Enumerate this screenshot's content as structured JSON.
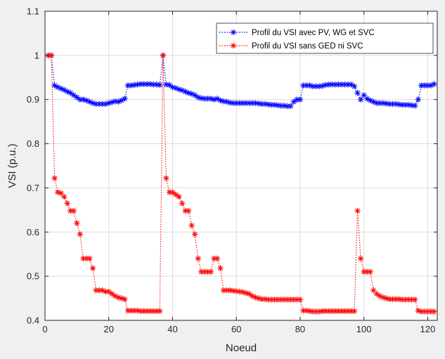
{
  "chart_data": {
    "type": "line",
    "xlabel": "Noeud",
    "ylabel": "VSI (p.u.)",
    "xlim": [
      0,
      123
    ],
    "ylim": [
      0.4,
      1.1
    ],
    "xticks": [
      0,
      20,
      40,
      60,
      80,
      100,
      120
    ],
    "yticks": [
      0.4,
      0.5,
      0.6,
      0.7,
      0.8,
      0.9,
      1,
      1.1
    ],
    "grid": true,
    "legend_position": "top-right",
    "series": [
      {
        "name": "Profil du VSI avec PV, WG et SVC",
        "color": "#0000ff",
        "linestyle": "dotted",
        "marker": "asterisk",
        "x": [
          1,
          2,
          3,
          4,
          5,
          6,
          7,
          8,
          9,
          10,
          11,
          12,
          13,
          14,
          15,
          16,
          17,
          18,
          19,
          20,
          21,
          22,
          23,
          24,
          25,
          26,
          27,
          28,
          29,
          30,
          31,
          32,
          33,
          34,
          35,
          36,
          37,
          38,
          39,
          40,
          41,
          42,
          43,
          44,
          45,
          46,
          47,
          48,
          49,
          50,
          51,
          52,
          53,
          54,
          55,
          56,
          57,
          58,
          59,
          60,
          61,
          62,
          63,
          64,
          65,
          66,
          67,
          68,
          69,
          70,
          71,
          72,
          73,
          74,
          75,
          76,
          77,
          78,
          79,
          80,
          81,
          82,
          83,
          84,
          85,
          86,
          87,
          88,
          89,
          90,
          91,
          92,
          93,
          94,
          95,
          96,
          97,
          98,
          99,
          100,
          101,
          102,
          103,
          104,
          105,
          106,
          107,
          108,
          109,
          110,
          111,
          112,
          113,
          114,
          115,
          116,
          117,
          118,
          119,
          120,
          121,
          122
        ],
        "y": [
          1.0,
          1.0,
          0.932,
          0.928,
          0.925,
          0.922,
          0.918,
          0.915,
          0.91,
          0.905,
          0.9,
          0.9,
          0.898,
          0.895,
          0.892,
          0.89,
          0.89,
          0.89,
          0.89,
          0.892,
          0.894,
          0.896,
          0.895,
          0.898,
          0.902,
          0.932,
          0.932,
          0.933,
          0.934,
          0.935,
          0.935,
          0.935,
          0.935,
          0.934,
          0.934,
          0.933,
          1.0,
          0.934,
          0.933,
          0.928,
          0.926,
          0.923,
          0.921,
          0.918,
          0.915,
          0.913,
          0.91,
          0.905,
          0.903,
          0.902,
          0.902,
          0.902,
          0.9,
          0.902,
          0.898,
          0.896,
          0.895,
          0.893,
          0.892,
          0.892,
          0.892,
          0.892,
          0.892,
          0.892,
          0.892,
          0.892,
          0.891,
          0.89,
          0.89,
          0.889,
          0.888,
          0.888,
          0.887,
          0.886,
          0.886,
          0.885,
          0.885,
          0.895,
          0.9,
          0.9,
          0.932,
          0.932,
          0.932,
          0.93,
          0.93,
          0.93,
          0.931,
          0.933,
          0.934,
          0.934,
          0.934,
          0.934,
          0.934,
          0.934,
          0.934,
          0.934,
          0.93,
          0.915,
          0.9,
          0.91,
          0.902,
          0.898,
          0.895,
          0.892,
          0.892,
          0.892,
          0.891,
          0.89,
          0.89,
          0.89,
          0.889,
          0.888,
          0.888,
          0.888,
          0.887,
          0.886,
          0.9,
          0.932,
          0.932,
          0.932,
          0.932,
          0.935
        ]
      },
      {
        "name": "Profil du VSI sans  GED ni SVC",
        "color": "#ff0000",
        "linestyle": "dotted",
        "marker": "asterisk",
        "x": [
          1,
          2,
          3,
          4,
          5,
          6,
          7,
          8,
          9,
          10,
          11,
          12,
          13,
          14,
          15,
          16,
          17,
          18,
          19,
          20,
          21,
          22,
          23,
          24,
          25,
          26,
          27,
          28,
          29,
          30,
          31,
          32,
          33,
          34,
          35,
          36,
          37,
          38,
          39,
          40,
          41,
          42,
          43,
          44,
          45,
          46,
          47,
          48,
          49,
          50,
          51,
          52,
          53,
          54,
          55,
          56,
          57,
          58,
          59,
          60,
          61,
          62,
          63,
          64,
          65,
          66,
          67,
          68,
          69,
          70,
          71,
          72,
          73,
          74,
          75,
          76,
          77,
          78,
          79,
          80,
          81,
          82,
          83,
          84,
          85,
          86,
          87,
          88,
          89,
          90,
          91,
          92,
          93,
          94,
          95,
          96,
          97,
          98,
          99,
          100,
          101,
          102,
          103,
          104,
          105,
          106,
          107,
          108,
          109,
          110,
          111,
          112,
          113,
          114,
          115,
          116,
          117,
          118,
          119,
          120,
          121,
          122
        ],
        "y": [
          1.0,
          1.0,
          0.722,
          0.69,
          0.688,
          0.68,
          0.665,
          0.648,
          0.648,
          0.62,
          0.595,
          0.54,
          0.54,
          0.54,
          0.518,
          0.468,
          0.468,
          0.468,
          0.465,
          0.465,
          0.46,
          0.455,
          0.452,
          0.45,
          0.448,
          0.422,
          0.422,
          0.422,
          0.422,
          0.421,
          0.421,
          0.421,
          0.421,
          0.421,
          0.421,
          0.421,
          1.0,
          0.722,
          0.69,
          0.69,
          0.685,
          0.68,
          0.665,
          0.648,
          0.648,
          0.615,
          0.595,
          0.54,
          0.51,
          0.51,
          0.51,
          0.51,
          0.54,
          0.54,
          0.518,
          0.468,
          0.468,
          0.468,
          0.467,
          0.466,
          0.465,
          0.464,
          0.462,
          0.46,
          0.455,
          0.452,
          0.45,
          0.448,
          0.448,
          0.447,
          0.447,
          0.447,
          0.447,
          0.447,
          0.447,
          0.447,
          0.447,
          0.447,
          0.447,
          0.447,
          0.422,
          0.422,
          0.421,
          0.42,
          0.42,
          0.42,
          0.421,
          0.421,
          0.421,
          0.421,
          0.421,
          0.421,
          0.421,
          0.421,
          0.421,
          0.421,
          0.421,
          0.648,
          0.54,
          0.51,
          0.51,
          0.51,
          0.468,
          0.46,
          0.455,
          0.452,
          0.45,
          0.448,
          0.448,
          0.448,
          0.448,
          0.447,
          0.447,
          0.447,
          0.447,
          0.447,
          0.422,
          0.42,
          0.42,
          0.42,
          0.42,
          0.42
        ]
      }
    ]
  }
}
